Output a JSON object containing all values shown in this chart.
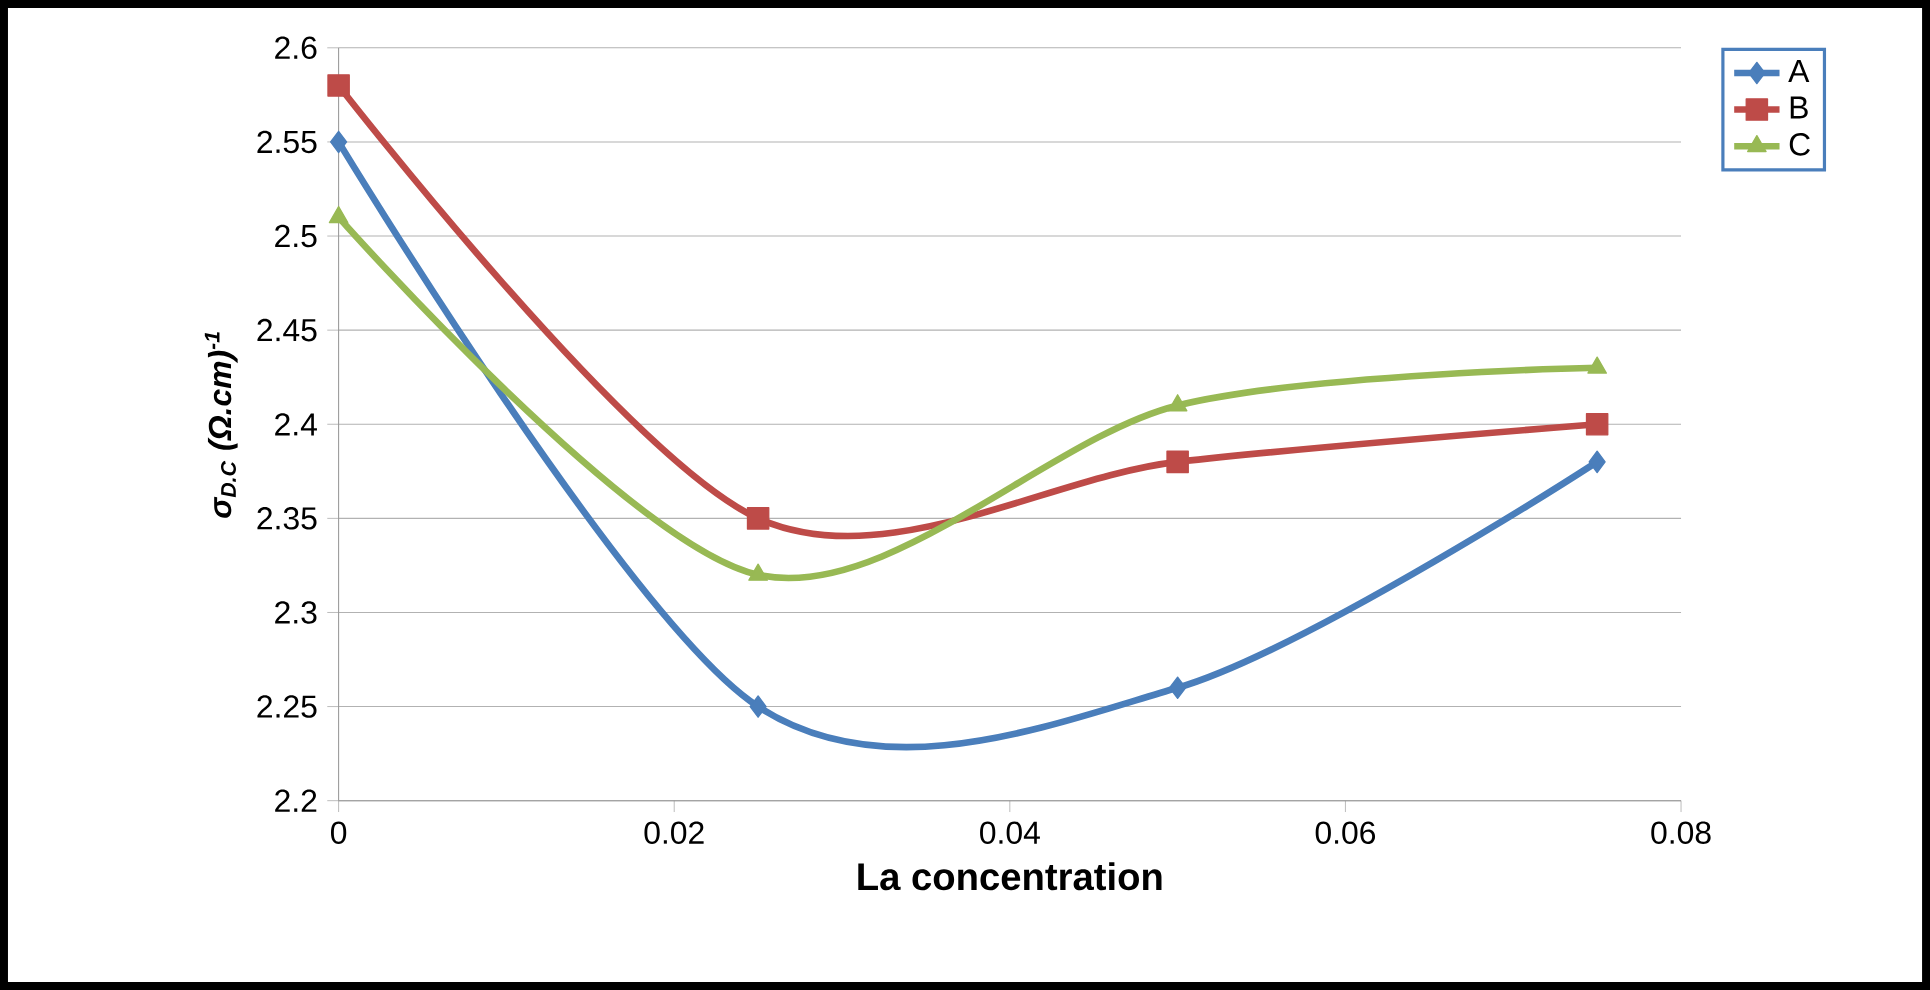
{
  "chart_data": {
    "type": "line",
    "xlabel": "La concentration",
    "ylabel": "σ$_{D.C}$   (Ω.cm)$^{-1}$",
    "x": [
      0,
      0.025,
      0.05,
      0.075
    ],
    "series": [
      {
        "name": "A",
        "color": "#4a7ebb",
        "marker": "diamond",
        "values": [
          2.55,
          2.25,
          2.26,
          2.38
        ]
      },
      {
        "name": "B",
        "color": "#be4b48",
        "marker": "square",
        "values": [
          2.58,
          2.35,
          2.38,
          2.4
        ]
      },
      {
        "name": "C",
        "color": "#98b954",
        "marker": "triangle",
        "values": [
          2.51,
          2.32,
          2.41,
          2.43
        ]
      }
    ],
    "xlim": [
      0,
      0.08
    ],
    "xticks": [
      0,
      0.02,
      0.04,
      0.06,
      0.08
    ],
    "ylim": [
      2.2,
      2.6
    ],
    "yticks": [
      2.2,
      2.25,
      2.3,
      2.35,
      2.4,
      2.45,
      2.5,
      2.55,
      2.6
    ],
    "grid": "y",
    "legend": "top right"
  }
}
